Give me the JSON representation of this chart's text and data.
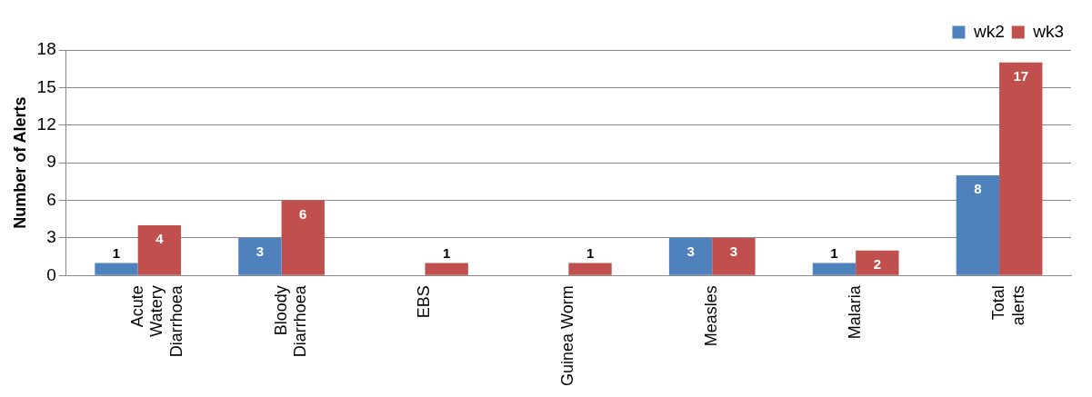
{
  "chart_data": {
    "type": "bar",
    "ylabel": "Number of Alerts",
    "categories": [
      "Acute Watery Diarrhoea",
      "Bloody Diarrhoea",
      "EBS",
      "Guinea Worm",
      "Measles",
      "Malaria",
      "Total alerts"
    ],
    "series": [
      {
        "name": "wk2",
        "color": "#4f81bd",
        "values": [
          1,
          3,
          null,
          null,
          3,
          1,
          8
        ]
      },
      {
        "name": "wk3",
        "color": "#c0504d",
        "values": [
          4,
          6,
          1,
          1,
          3,
          2,
          17
        ]
      }
    ],
    "ylim": [
      0,
      18
    ],
    "yticks": [
      0,
      3,
      6,
      9,
      12,
      15,
      18
    ],
    "grid": "y",
    "legend": "top right",
    "data_labels": true
  }
}
